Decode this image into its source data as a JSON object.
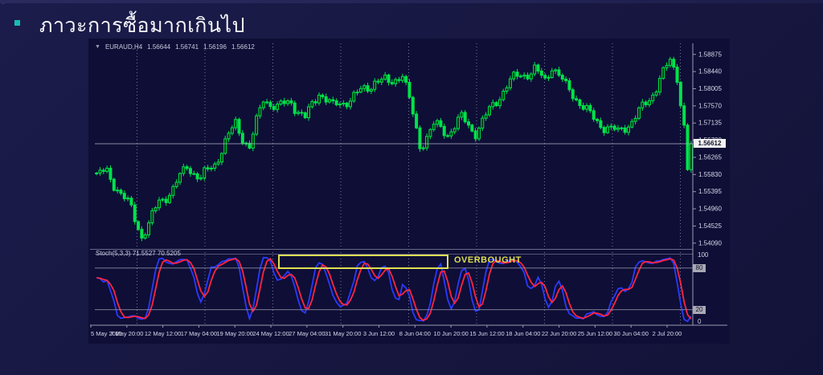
{
  "slide": {
    "title": "ภาวะการซื้อมากเกินไป",
    "accent_color": "#17bdb1"
  },
  "chart": {
    "header": {
      "symbol": "EURAUD,H4",
      "open": "1.56644",
      "high": "1.56741",
      "low": "1.56196",
      "close": "1.56612"
    },
    "price_axis": {
      "current_label": "1.56612"
    },
    "stoch": {
      "name": "Stoch(5,3,3)",
      "k_value": "71.5527",
      "d_value": "70.5205",
      "scale_top": "100",
      "scale_bottom": "0",
      "level_upper_label": "80",
      "level_lower_label": "20"
    },
    "annotation": {
      "text": "OVERBOUGHT"
    }
  },
  "chart_data": {
    "type": "candlestick",
    "symbol": "EURAUD",
    "timeframe": "H4",
    "title": "EURAUD,H4 1.56644 1.56741 1.56196 1.56612",
    "last_price": 1.56612,
    "ylim": [
      1.54,
      1.5905
    ],
    "price_labels": [
      "1.58875",
      "1.58440",
      "1.58005",
      "1.57570",
      "1.57135",
      "1.56700",
      "1.56265",
      "1.55830",
      "1.55395",
      "1.54960",
      "1.54525",
      "1.54090"
    ],
    "time_labels": [
      "5 May 2021",
      "7 May 20:00",
      "12 May 12:00",
      "17 May 04:00",
      "19 May 20:00",
      "24 May 12:00",
      "27 May 04:00",
      "31 May 20:00",
      "3 Jun 12:00",
      "8 Jun 04:00",
      "10 Jun 20:00",
      "15 Jun 12:00",
      "18 Jun 04:00",
      "22 Jun 20:00",
      "25 Jun 12:00",
      "30 Jun 04:00",
      "2 Jul 20:00"
    ],
    "candle_count": 172,
    "close_keypoints": [
      [
        0,
        1.557
      ],
      [
        3,
        1.559
      ],
      [
        6,
        1.5555
      ],
      [
        10,
        1.55
      ],
      [
        13,
        1.5425
      ],
      [
        15,
        1.5445
      ],
      [
        18,
        1.551
      ],
      [
        22,
        1.555
      ],
      [
        26,
        1.5615
      ],
      [
        30,
        1.5565
      ],
      [
        34,
        1.5605
      ],
      [
        40,
        1.572
      ],
      [
        44,
        1.5655
      ],
      [
        48,
        1.577
      ],
      [
        52,
        1.5745
      ],
      [
        56,
        1.5775
      ],
      [
        60,
        1.573
      ],
      [
        64,
        1.579
      ],
      [
        68,
        1.5745
      ],
      [
        72,
        1.5775
      ],
      [
        76,
        1.58
      ],
      [
        80,
        1.582
      ],
      [
        84,
        1.5805
      ],
      [
        88,
        1.584
      ],
      [
        91,
        1.574
      ],
      [
        93,
        1.5665
      ],
      [
        97,
        1.5705
      ],
      [
        101,
        1.568
      ],
      [
        105,
        1.5725
      ],
      [
        109,
        1.57
      ],
      [
        113,
        1.5745
      ],
      [
        118,
        1.58
      ],
      [
        122,
        1.5838
      ],
      [
        126,
        1.5855
      ],
      [
        129,
        1.5825
      ],
      [
        131,
        1.586
      ],
      [
        135,
        1.5795
      ],
      [
        139,
        1.5768
      ],
      [
        143,
        1.573
      ],
      [
        147,
        1.5705
      ],
      [
        150,
        1.568
      ],
      [
        153,
        1.5705
      ],
      [
        156,
        1.574
      ],
      [
        159,
        1.578
      ],
      [
        162,
        1.5835
      ],
      [
        165,
        1.5865
      ],
      [
        167,
        1.5825
      ],
      [
        169,
        1.57
      ],
      [
        170,
        1.559
      ],
      [
        171,
        1.56612
      ]
    ],
    "indicator": {
      "type": "stochastic",
      "label": "Stoch(5,3,3)",
      "k_period": 5,
      "k_slowing": 3,
      "d_period": 3,
      "current_k": 71.5527,
      "current_d": 70.5205,
      "levels": [
        80,
        20
      ],
      "range": [
        0,
        100
      ]
    },
    "annotation": {
      "text": "OVERBOUGHT",
      "box_span": "24 May 12:00 - 8 Jun 04:00"
    },
    "colors": {
      "candle": "#00e34a",
      "stoch_k": "#2a3aff",
      "stoch_d": "#ff2442",
      "grid": "#9a9ab2",
      "annotation": "#dede52",
      "chart_background": "#0e0e36"
    }
  }
}
